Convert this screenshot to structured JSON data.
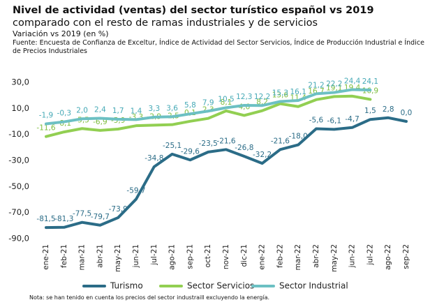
{
  "chart_data": {
    "type": "line",
    "title": "Nivel de actividad (ventas) del sector turístico español vs 2019",
    "title_rest": "comparado con el resto de ramas industriales y de servicios",
    "subtitle": "Variación vs 2019 (en %)",
    "source": "Fuente: Encuesta de Confianza de Exceltur, Índice de Actividad del Sector Servicios, Índice de Producción Industrial e Índice de Precios Industriales",
    "note": "Nota: se han tenido en cuenta los precios del sector industraill excluyendo la energía.",
    "categories": [
      "ene-21",
      "feb-21",
      "mar-21",
      "abr-21",
      "may-21",
      "jun-21",
      "jul-21",
      "ago-21",
      "sep-21",
      "oct-21",
      "nov-21",
      "dic-21",
      "ene-22",
      "feb-22",
      "mar-22",
      "abr-22",
      "may-22",
      "jun-22",
      "jul-22",
      "ago-22",
      "sep-22"
    ],
    "series": [
      {
        "name": "Turismo",
        "color": "#2b6c87",
        "values": [
          -81.5,
          -81.3,
          -77.5,
          -79.7,
          -73.9,
          -59.7,
          -34.8,
          -25.1,
          -29.6,
          -23.5,
          -21.6,
          -26.8,
          -32.2,
          -21.6,
          -18.0,
          -5.6,
          -6.1,
          -4.7,
          1.5,
          2.8,
          0.0
        ],
        "value_labels": [
          "-81,5",
          "-81,3",
          "-77,5",
          "-79,7",
          "-73,9",
          "-59,7",
          "-34,8",
          "-25,1",
          "-29,6",
          "-23,5",
          "-21,6",
          "-26,8",
          "-32,2",
          "-21,6",
          "-18,0",
          "-5,6",
          "-6,1",
          "-4,7",
          "1,5",
          "2,8",
          "0,0"
        ]
      },
      {
        "name": "Sector Servicios",
        "color": "#92cf52",
        "values": [
          -11.6,
          -8.1,
          -5.5,
          -6.9,
          -5.9,
          -3.3,
          -2.9,
          -2.5,
          0.1,
          2.3,
          8.1,
          4.6,
          8.2,
          13.6,
          11.4,
          16.7,
          19.1,
          19.4,
          16.9,
          null,
          null
        ],
        "value_labels": [
          "-11,6",
          "-8,1",
          "-5,5",
          "-6,9",
          "-5,9",
          "-3,3",
          "-2,9",
          "-2,5",
          "0,1",
          "2,3",
          "8,1",
          "4,6",
          "8,2",
          "13,6",
          "11,4",
          "16,7",
          "19,1",
          "19,4",
          "16,9",
          null,
          null
        ]
      },
      {
        "name": "Sector Industrial",
        "color": "#6cc0c3",
        "values": [
          -1.9,
          -0.3,
          2.0,
          2.4,
          1.7,
          1.4,
          3.3,
          3.6,
          5.8,
          7.9,
          10.5,
          12.3,
          12.2,
          15.3,
          16.1,
          21.2,
          22.2,
          24.4,
          24.1,
          null,
          null
        ],
        "value_labels": [
          "-1,9",
          "-0,3",
          "2,0",
          "2,4",
          "1,7",
          "1,4",
          "3,3",
          "3,6",
          "5,8",
          "7,9",
          "10,5",
          "12,3",
          "12,2",
          "15,3",
          "16,1",
          "21,2",
          "22,2",
          "24,4",
          "24,1",
          null,
          null
        ]
      }
    ],
    "ylim": [
      -90,
      30
    ],
    "yticks": [
      {
        "value": 30,
        "label": "30,0"
      },
      {
        "value": 10,
        "label": "10,0"
      },
      {
        "value": -10,
        "label": "-10,0"
      },
      {
        "value": -30,
        "label": "-30,0"
      },
      {
        "value": -50,
        "label": "-50,0"
      },
      {
        "value": -70,
        "label": "-70,0"
      },
      {
        "value": -90,
        "label": "-90,0"
      }
    ],
    "legend": "bottom"
  }
}
